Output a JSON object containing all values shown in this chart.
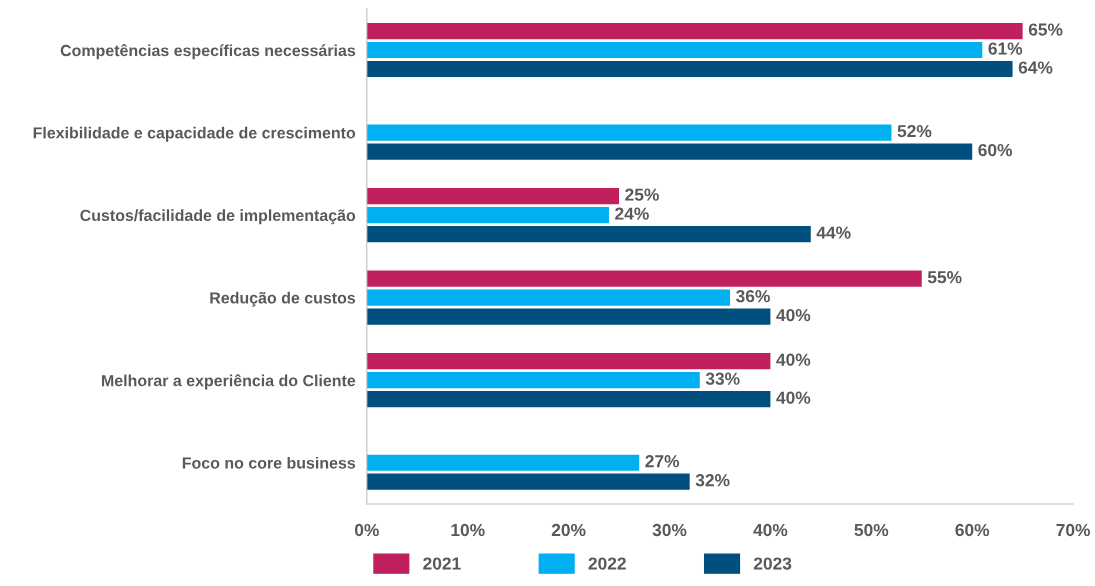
{
  "chart_data": {
    "type": "bar",
    "orientation": "horizontal",
    "categories": [
      "Competências específicas necessárias",
      "Flexibilidade e capacidade de crescimento",
      "Custos/facilidade de implementação",
      "Redução de custos",
      "Melhorar a experiência do Cliente",
      "Foco no core business"
    ],
    "series": [
      {
        "name": "2021",
        "color": "#c0215e",
        "values": [
          65,
          null,
          25,
          55,
          40,
          null
        ],
        "value_labels": [
          "65%",
          null,
          "25%",
          "55%",
          "40%",
          null
        ]
      },
      {
        "name": "2022",
        "color": "#00b0f0",
        "values": [
          61,
          52,
          24,
          36,
          33,
          27
        ],
        "value_labels": [
          "61%",
          "52%",
          "24%",
          "36%",
          "33%",
          "27%"
        ]
      },
      {
        "name": "2023",
        "color": "#004f7f",
        "values": [
          64,
          60,
          44,
          40,
          40,
          32
        ],
        "value_labels": [
          "64%",
          "60%",
          "44%",
          "40%",
          "40%",
          "32%"
        ]
      }
    ],
    "xlim": [
      0,
      70
    ],
    "xticks": [
      {
        "value": 0,
        "label": "0%"
      },
      {
        "value": 10,
        "label": "10%"
      },
      {
        "value": 20,
        "label": "20%"
      },
      {
        "value": 30,
        "label": "30%"
      },
      {
        "value": 40,
        "label": "40%"
      },
      {
        "value": 50,
        "label": "50%"
      },
      {
        "value": 60,
        "label": "60%"
      },
      {
        "value": 70,
        "label": "70%"
      }
    ],
    "grid": false,
    "legend": "bottom"
  }
}
